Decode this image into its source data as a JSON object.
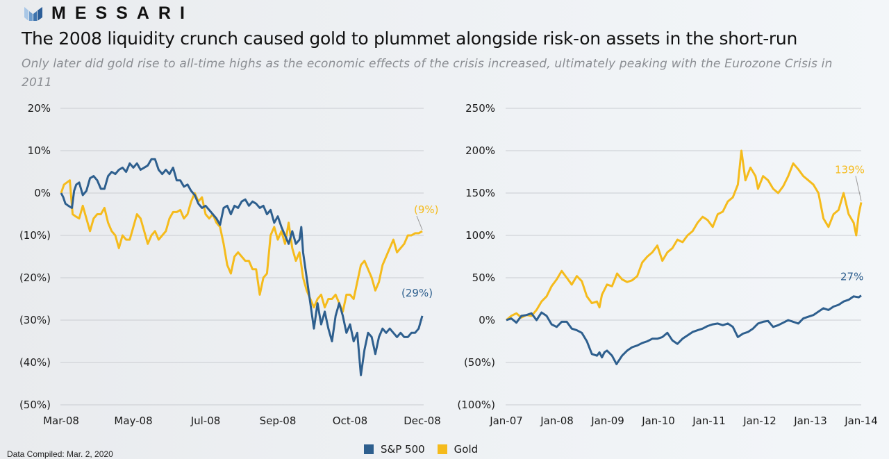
{
  "brand": {
    "name": "MESSARI",
    "logo_icon": "messari-logo-icon"
  },
  "header": {
    "title": "The 2008 liquidity crunch caused gold to plummet alongside risk-on assets in the short-run",
    "subtitle": "Only later did gold rise to all-time highs as the economic effects of the crisis increased, ultimately peaking with the Eurozone Crisis in 2011"
  },
  "colors": {
    "sp500": "#2e5f8e",
    "gold": "#f5bb1c",
    "grid": "#c9ccd1",
    "text": "#1a1a1a"
  },
  "legend": {
    "items": [
      {
        "label": "S&P 500",
        "color": "#2e5f8e"
      },
      {
        "label": "Gold",
        "color": "#f5bb1c"
      }
    ]
  },
  "footer": {
    "text": "Data Compiled: Mar. 2, 2020"
  },
  "chart_data": [
    {
      "type": "line",
      "title": "",
      "xlabel": "",
      "ylabel": "",
      "x_tick_labels": [
        "Mar-08",
        "May-08",
        "Jul-08",
        "Sep-08",
        "Oct-08",
        "Dec-08"
      ],
      "y_tick_labels": [
        "20%",
        "10%",
        "0%",
        "(10%)",
        "(20%)",
        "(30%)",
        "(40%)",
        "(50%)"
      ],
      "y_ticks": [
        20,
        10,
        0,
        -10,
        -20,
        -30,
        -40,
        -50
      ],
      "ylim": [
        -50,
        20
      ],
      "xlim": [
        0,
        1
      ],
      "grid": true,
      "legend": "bottom-center",
      "x_note": "x is fraction of the Mar-08 to Dec-08 span",
      "series": [
        {
          "name": "S&P 500",
          "end_label": "(29%)",
          "x": [
            0,
            0.006,
            0.012,
            0.02,
            0.03,
            0.036,
            0.042,
            0.05,
            0.06,
            0.07,
            0.08,
            0.09,
            0.1,
            0.11,
            0.12,
            0.13,
            0.14,
            0.15,
            0.16,
            0.17,
            0.18,
            0.19,
            0.2,
            0.21,
            0.22,
            0.23,
            0.24,
            0.25,
            0.26,
            0.27,
            0.28,
            0.29,
            0.3,
            0.31,
            0.32,
            0.33,
            0.34,
            0.35,
            0.36,
            0.37,
            0.38,
            0.39,
            0.4,
            0.41,
            0.42,
            0.43,
            0.44,
            0.45,
            0.46,
            0.47,
            0.48,
            0.49,
            0.5,
            0.51,
            0.52,
            0.53,
            0.54,
            0.55,
            0.56,
            0.57,
            0.58,
            0.59,
            0.6,
            0.61,
            0.62,
            0.63,
            0.64,
            0.65,
            0.66,
            0.665,
            0.67,
            0.68,
            0.69,
            0.7,
            0.71,
            0.72,
            0.73,
            0.74,
            0.75,
            0.76,
            0.77,
            0.78,
            0.79,
            0.8,
            0.81,
            0.82,
            0.83,
            0.84,
            0.85,
            0.86,
            0.87,
            0.88,
            0.89,
            0.9,
            0.91,
            0.92,
            0.93,
            0.94,
            0.95,
            0.96,
            0.97,
            0.98,
            0.99,
            1.0
          ],
          "y": [
            0,
            -1,
            -2.5,
            -3,
            -3.5,
            0.5,
            2,
            2.5,
            -0.5,
            0.5,
            3.5,
            4,
            3,
            1,
            1,
            4,
            5,
            4.5,
            5.5,
            6,
            5,
            7,
            6,
            7,
            5.5,
            6,
            6.5,
            8,
            8,
            5.5,
            4.5,
            5.5,
            4.5,
            6,
            3,
            3,
            1.5,
            2,
            0.5,
            -0.5,
            -2.5,
            -3.5,
            -3,
            -4,
            -5,
            -6,
            -7.5,
            -3.5,
            -3,
            -5,
            -3,
            -3.5,
            -2,
            -1.5,
            -3,
            -2,
            -2.5,
            -3.5,
            -3,
            -5,
            -4,
            -7,
            -5.5,
            -8,
            -10,
            -12,
            -9,
            -12,
            -11,
            -8,
            -14,
            -20,
            -26,
            -32,
            -26,
            -31,
            -28,
            -32,
            -35,
            -29,
            -26,
            -29,
            -33,
            -31,
            -35,
            -33,
            -43,
            -37,
            -33,
            -34,
            -38,
            -34,
            -32,
            -33,
            -32,
            -33,
            -34,
            -33,
            -34,
            -34,
            -33,
            -33,
            -32,
            -29
          ]
        },
        {
          "name": "Gold",
          "end_label": "(9%)",
          "x": [
            0,
            0.008,
            0.016,
            0.024,
            0.032,
            0.04,
            0.05,
            0.06,
            0.07,
            0.08,
            0.09,
            0.1,
            0.11,
            0.12,
            0.13,
            0.14,
            0.15,
            0.16,
            0.17,
            0.18,
            0.19,
            0.2,
            0.21,
            0.22,
            0.23,
            0.24,
            0.25,
            0.26,
            0.27,
            0.28,
            0.29,
            0.3,
            0.31,
            0.32,
            0.33,
            0.34,
            0.35,
            0.36,
            0.37,
            0.38,
            0.39,
            0.4,
            0.41,
            0.42,
            0.43,
            0.44,
            0.45,
            0.46,
            0.47,
            0.48,
            0.49,
            0.5,
            0.51,
            0.52,
            0.53,
            0.54,
            0.55,
            0.56,
            0.57,
            0.58,
            0.59,
            0.6,
            0.61,
            0.62,
            0.63,
            0.64,
            0.65,
            0.66,
            0.67,
            0.68,
            0.69,
            0.7,
            0.71,
            0.72,
            0.73,
            0.74,
            0.75,
            0.76,
            0.77,
            0.78,
            0.79,
            0.8,
            0.81,
            0.82,
            0.83,
            0.84,
            0.85,
            0.86,
            0.87,
            0.88,
            0.89,
            0.9,
            0.91,
            0.92,
            0.93,
            0.94,
            0.95,
            0.96,
            0.97,
            0.98,
            0.99,
            1.0
          ],
          "y": [
            0,
            2,
            2.5,
            3,
            -5,
            -5.5,
            -6,
            -3,
            -6,
            -9,
            -6,
            -5,
            -5,
            -3.5,
            -7,
            -9,
            -10,
            -13,
            -10,
            -11,
            -11,
            -8,
            -5,
            -6,
            -9,
            -12,
            -10,
            -9,
            -11,
            -10,
            -9,
            -6,
            -4.5,
            -4.5,
            -4,
            -6,
            -5,
            -2,
            0,
            -2,
            -1,
            -5,
            -6,
            -5,
            -7,
            -8,
            -12,
            -17,
            -19,
            -15,
            -14,
            -15,
            -16,
            -16,
            -18,
            -18,
            -24,
            -20,
            -19,
            -10,
            -8,
            -11,
            -9,
            -12,
            -7,
            -13,
            -16,
            -14,
            -20,
            -23,
            -25,
            -27,
            -25,
            -24,
            -27,
            -25,
            -25,
            -24,
            -26,
            -28,
            -24,
            -24,
            -25,
            -21,
            -17,
            -16,
            -18,
            -20,
            -23,
            -21,
            -17,
            -15,
            -13,
            -11,
            -14,
            -13,
            -12,
            -10,
            -10,
            -9.5,
            -9.5,
            -9
          ]
        }
      ]
    },
    {
      "type": "line",
      "title": "",
      "xlabel": "",
      "ylabel": "",
      "x_tick_labels": [
        "Jan-07",
        "Jan-08",
        "Jan-09",
        "Jan-10",
        "Jan-11",
        "Jan-12",
        "Jan-13",
        "Jan-14"
      ],
      "y_tick_labels": [
        "250%",
        "200%",
        "150%",
        "100%",
        "50%",
        "0%",
        "(50%)",
        "(100%)"
      ],
      "y_ticks": [
        250,
        200,
        150,
        100,
        50,
        0,
        -50,
        -100
      ],
      "ylim": [
        -100,
        250
      ],
      "xlim": [
        2007,
        2014.05
      ],
      "grid": true,
      "legend": "bottom-center",
      "series": [
        {
          "name": "S&P 500",
          "end_label": "27%",
          "x": [
            2007.0,
            2007.1,
            2007.2,
            2007.3,
            2007.4,
            2007.5,
            2007.6,
            2007.7,
            2007.8,
            2007.9,
            2008.0,
            2008.1,
            2008.2,
            2008.3,
            2008.4,
            2008.5,
            2008.6,
            2008.7,
            2008.8,
            2008.85,
            2008.9,
            2008.95,
            2009.0,
            2009.1,
            2009.19,
            2009.3,
            2009.4,
            2009.5,
            2009.6,
            2009.7,
            2009.8,
            2009.9,
            2010.0,
            2010.1,
            2010.2,
            2010.3,
            2010.4,
            2010.5,
            2010.6,
            2010.7,
            2010.8,
            2010.9,
            2011.0,
            2011.1,
            2011.2,
            2011.3,
            2011.4,
            2011.5,
            2011.6,
            2011.7,
            2011.8,
            2011.9,
            2012.0,
            2012.1,
            2012.2,
            2012.3,
            2012.4,
            2012.5,
            2012.6,
            2012.7,
            2012.8,
            2012.9,
            2013.0,
            2013.1,
            2013.2,
            2013.3,
            2013.4,
            2013.5,
            2013.6,
            2013.7,
            2013.8,
            2013.9,
            2014.0,
            2014.05
          ],
          "y": [
            0,
            2,
            -3,
            5,
            6,
            8,
            0,
            9,
            5,
            -5,
            -8,
            -2,
            -2,
            -10,
            -12,
            -15,
            -25,
            -40,
            -42,
            -38,
            -44,
            -38,
            -36,
            -42,
            -52,
            -42,
            -36,
            -32,
            -30,
            -27,
            -25,
            -22,
            -22,
            -20,
            -15,
            -24,
            -28,
            -22,
            -18,
            -14,
            -12,
            -10,
            -7,
            -5,
            -4,
            -6,
            -4,
            -8,
            -20,
            -16,
            -14,
            -10,
            -4,
            -2,
            -1,
            -8,
            -6,
            -3,
            0,
            -2,
            -4,
            2,
            4,
            6,
            10,
            14,
            12,
            16,
            18,
            22,
            24,
            28,
            27,
            29
          ]
        },
        {
          "name": "Gold",
          "end_label": "139%",
          "x": [
            2007.0,
            2007.1,
            2007.2,
            2007.3,
            2007.4,
            2007.5,
            2007.6,
            2007.7,
            2007.8,
            2007.9,
            2008.0,
            2008.1,
            2008.2,
            2008.3,
            2008.4,
            2008.5,
            2008.6,
            2008.7,
            2008.8,
            2008.85,
            2008.9,
            2009.0,
            2009.1,
            2009.2,
            2009.3,
            2009.4,
            2009.5,
            2009.6,
            2009.7,
            2009.8,
            2009.9,
            2010.0,
            2010.1,
            2010.2,
            2010.3,
            2010.4,
            2010.5,
            2010.6,
            2010.7,
            2010.8,
            2010.9,
            2011.0,
            2011.1,
            2011.2,
            2011.3,
            2011.4,
            2011.5,
            2011.6,
            2011.67,
            2011.75,
            2011.85,
            2011.95,
            2012.0,
            2012.1,
            2012.2,
            2012.3,
            2012.4,
            2012.5,
            2012.6,
            2012.7,
            2012.8,
            2012.9,
            2013.0,
            2013.1,
            2013.2,
            2013.3,
            2013.4,
            2013.5,
            2013.6,
            2013.7,
            2013.8,
            2013.9,
            2013.95,
            2014.0,
            2014.05
          ],
          "y": [
            0,
            5,
            8,
            3,
            6,
            5,
            12,
            22,
            28,
            40,
            48,
            58,
            50,
            42,
            52,
            46,
            28,
            20,
            22,
            15,
            30,
            42,
            40,
            55,
            48,
            45,
            47,
            52,
            68,
            75,
            80,
            88,
            70,
            80,
            85,
            95,
            92,
            100,
            105,
            115,
            122,
            118,
            110,
            125,
            128,
            140,
            145,
            160,
            200,
            165,
            180,
            170,
            155,
            170,
            165,
            155,
            150,
            158,
            170,
            185,
            178,
            170,
            165,
            160,
            150,
            120,
            110,
            125,
            130,
            150,
            125,
            115,
            100,
            125,
            139
          ]
        }
      ]
    }
  ]
}
